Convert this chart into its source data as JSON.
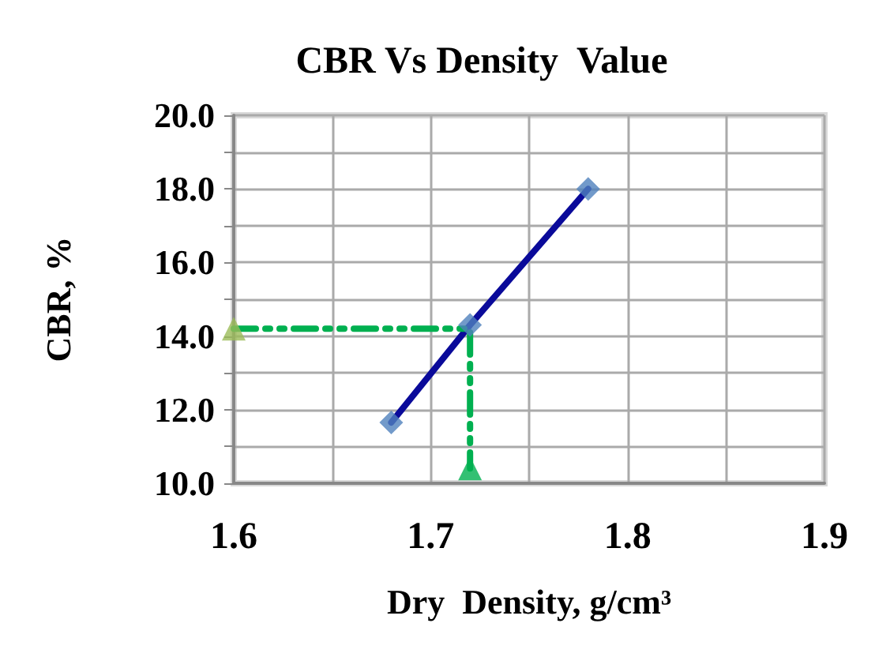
{
  "chart_data": {
    "type": "scatter",
    "title": "CBR Vs Density  Value",
    "xlabel": "Dry  Density, g/cm³",
    "ylabel": "CBR, %",
    "xlim": [
      1.6,
      1.9
    ],
    "xticks": [
      {
        "value": 1.6,
        "label": "1.6"
      },
      {
        "value": 1.65,
        "label": null
      },
      {
        "value": 1.7,
        "label": "1.7"
      },
      {
        "value": 1.75,
        "label": null
      },
      {
        "value": 1.8,
        "label": "1.8"
      },
      {
        "value": 1.85,
        "label": null
      },
      {
        "value": 1.9,
        "label": "1.9"
      }
    ],
    "ylim": [
      10,
      20
    ],
    "yticks": [
      {
        "value": 10,
        "label": "10.0"
      },
      {
        "value": 11,
        "label": null
      },
      {
        "value": 12,
        "label": "12.0"
      },
      {
        "value": 13,
        "label": null
      },
      {
        "value": 14,
        "label": "14.0"
      },
      {
        "value": 15,
        "label": null
      },
      {
        "value": 16,
        "label": "16.0"
      },
      {
        "value": 17,
        "label": null
      },
      {
        "value": 18,
        "label": "18.0"
      },
      {
        "value": 19,
        "label": null
      },
      {
        "value": 20,
        "label": "20.0"
      }
    ],
    "grid": true,
    "series": [
      {
        "type": "line",
        "color": "#0a0a9a",
        "x": [
          1.68,
          1.72,
          1.78
        ],
        "values": [
          11.65,
          14.3,
          18.0
        ],
        "marker": "none",
        "line_style": "solid"
      },
      {
        "color": "#4f81bd",
        "x": [
          1.68,
          1.72,
          1.78
        ],
        "values": [
          11.65,
          14.3,
          18.0
        ],
        "marker": "diamond"
      },
      {
        "type": "line",
        "color": "#00b050",
        "x": [
          1.6,
          1.72,
          1.72
        ],
        "values": [
          14.2,
          14.2,
          10.4
        ],
        "marker": "none",
        "line_style": "dashed"
      },
      {
        "color": "#9bbb59",
        "x": [
          1.6
        ],
        "values": [
          14.2
        ],
        "marker": "triangle"
      },
      {
        "color": "#00b050",
        "x": [
          1.72
        ],
        "values": [
          10.4
        ],
        "marker": "triangle"
      }
    ]
  }
}
